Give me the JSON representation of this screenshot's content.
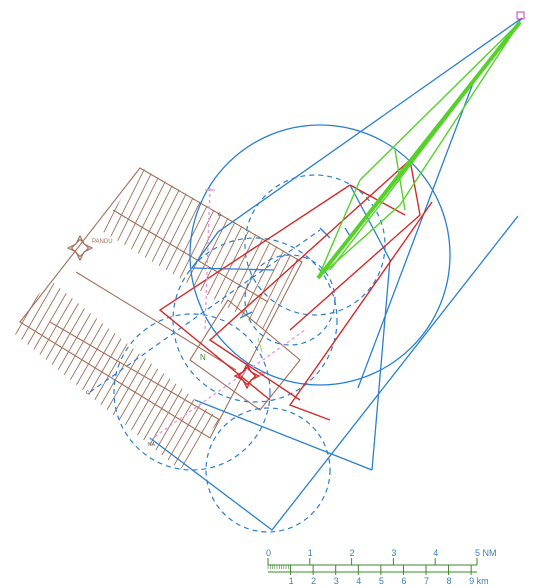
{
  "diagram": {
    "labels": {
      "aerodrome_name": "PANDU",
      "rwy_north_mark": "N",
      "rwy_end_mark": "NA",
      "vor_label": "IP",
      "corner_mark_w": "c",
      "corner_mark_e": "c"
    },
    "scale_bar": {
      "nm_ticks": [
        "0",
        "1",
        "2",
        "3",
        "4",
        "5 NM"
      ],
      "km_ticks": [
        "1",
        "2",
        "3",
        "4",
        "5",
        "6",
        "7",
        "8",
        "9 km"
      ]
    },
    "colors": {
      "brown": "#a0705a",
      "blue": "#2a7fd0",
      "red": "#d42a2a",
      "green": "#55d22a",
      "pink": "#e79ad8"
    }
  }
}
